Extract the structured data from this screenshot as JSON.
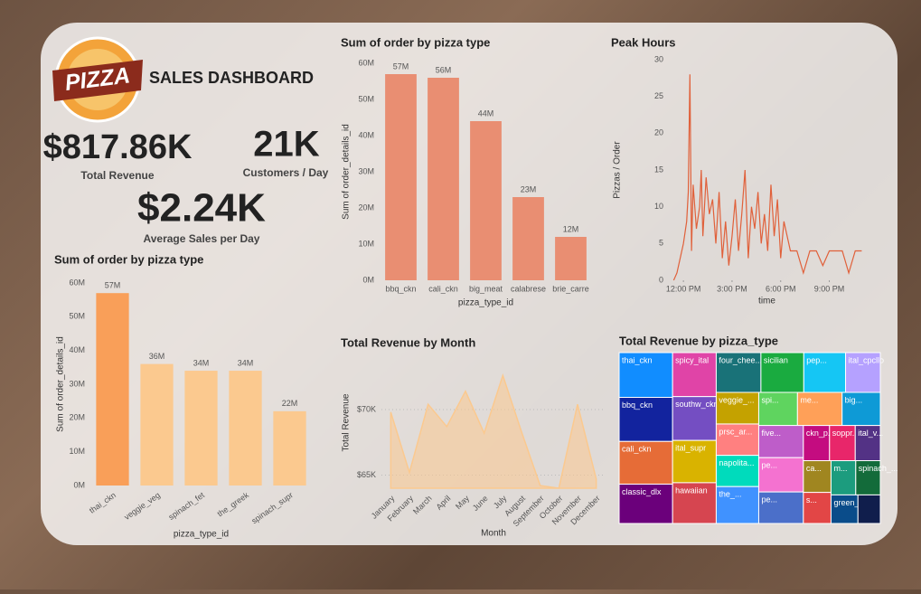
{
  "header": {
    "title": "SALES DASHBOARD",
    "logo": "PIZZA"
  },
  "kpis": [
    {
      "value": "$817.86K",
      "label": "Total Revenue"
    },
    {
      "value": "21K",
      "label": "Customers / Day"
    },
    {
      "value": "$2.24K",
      "label": "Average Sales per Day"
    }
  ],
  "chart_data": [
    {
      "type": "bar",
      "title": "Sum of order by pizza type",
      "x_label": "pizza_type_id",
      "y_label": "Sum of order_details_id",
      "categories": [
        "bbq_ckn",
        "cali_ckn",
        "big_meat",
        "calabrese",
        "brie_carre"
      ],
      "values": [
        57000000,
        56000000,
        44000000,
        23000000,
        12000000
      ],
      "value_labels": [
        "57M",
        "56M",
        "44M",
        "23M",
        "12M"
      ],
      "color": "#e98e72",
      "ylim": [
        0,
        60000000
      ],
      "yticks": [
        {
          "value": 0,
          "label": "0M"
        },
        {
          "value": 10000000,
          "label": "10M"
        },
        {
          "value": 20000000,
          "label": "20M"
        },
        {
          "value": 30000000,
          "label": "30M"
        },
        {
          "value": 40000000,
          "label": "40M"
        },
        {
          "value": 50000000,
          "label": "50M"
        },
        {
          "value": 60000000,
          "label": "60M"
        }
      ]
    },
    {
      "type": "line",
      "title": "Peak Hours",
      "x_label": "time",
      "y_label": "Pizzas / Order",
      "color": "#e0603a",
      "x": [
        11.4,
        11.6,
        11.8,
        12.0,
        12.2,
        12.3,
        12.4,
        12.5,
        12.6,
        12.8,
        13.0,
        13.1,
        13.2,
        13.4,
        13.6,
        13.8,
        14.0,
        14.2,
        14.4,
        14.6,
        14.8,
        15.0,
        15.2,
        15.4,
        15.6,
        15.8,
        16.0,
        16.2,
        16.4,
        16.6,
        16.8,
        17.0,
        17.2,
        17.4,
        17.6,
        17.8,
        18.0,
        18.2,
        18.6,
        19.0,
        19.4,
        19.8,
        20.2,
        20.6,
        21.0,
        21.4,
        21.8,
        22.2,
        22.6,
        23.0
      ],
      "values": [
        0,
        1,
        3,
        5,
        8,
        12,
        28,
        4,
        13,
        7,
        10,
        15,
        6,
        14,
        9,
        11,
        5,
        12,
        3,
        8,
        2,
        6,
        11,
        4,
        9,
        15,
        3,
        10,
        7,
        12,
        5,
        9,
        4,
        13,
        6,
        11,
        3,
        8,
        4,
        4,
        1,
        4,
        4,
        2,
        4,
        4,
        4,
        1,
        4,
        4
      ],
      "xlim": [
        11.1,
        23.2
      ],
      "xticks": [
        {
          "value": 12,
          "label": "12:00 PM"
        },
        {
          "value": 15,
          "label": "3:00 PM"
        },
        {
          "value": 18,
          "label": "6:00 PM"
        },
        {
          "value": 21,
          "label": "9:00 PM"
        }
      ],
      "ylim": [
        0,
        30
      ],
      "yticks": [
        0,
        5,
        10,
        15,
        20,
        25,
        30
      ]
    },
    {
      "type": "bar",
      "title": "Sum of order by pizza type",
      "x_label": "pizza_type_id",
      "y_label": "Sum of order_details_id",
      "categories": [
        "thai_ckn",
        "veggie_veg",
        "spinach_fet",
        "the_greek",
        "spinach_supr"
      ],
      "values": [
        57000000,
        36000000,
        34000000,
        34000000,
        22000000
      ],
      "value_labels": [
        "57M",
        "36M",
        "34M",
        "34M",
        "22M"
      ],
      "colors": [
        "#f99f59",
        "#fbc98f",
        "#fbc98f",
        "#fbc98f",
        "#fbc98f"
      ],
      "rotate_labels": true,
      "ylim": [
        0,
        60000000
      ],
      "yticks": [
        {
          "value": 0,
          "label": "0M"
        },
        {
          "value": 10000000,
          "label": "10M"
        },
        {
          "value": 20000000,
          "label": "20M"
        },
        {
          "value": 30000000,
          "label": "30M"
        },
        {
          "value": 40000000,
          "label": "40M"
        },
        {
          "value": 50000000,
          "label": "50M"
        },
        {
          "value": 60000000,
          "label": "60M"
        }
      ]
    },
    {
      "type": "area",
      "title": "Total Revenue by Month",
      "x_label": "Month",
      "y_label": "Total Revenue",
      "color": "#fbc98f",
      "grid": true,
      "categories": [
        "January",
        "February",
        "March",
        "April",
        "May",
        "June",
        "July",
        "August",
        "September",
        "October",
        "November",
        "December"
      ],
      "values": [
        69800,
        65200,
        70400,
        68700,
        71400,
        68200,
        72600,
        68300,
        64200,
        64000,
        70400,
        64700
      ],
      "ylim": [
        64000,
        74000
      ],
      "yticks": [
        {
          "value": 65000,
          "label": "$65K"
        },
        {
          "value": 70000,
          "label": "$70K"
        }
      ]
    },
    {
      "type": "treemap",
      "title": "Total Revenue by pizza_type",
      "categories": [
        "thai_ckn",
        "bbq_ckn",
        "cali_ckn",
        "classic_dlx",
        "spicy_ital",
        "southw_ckn",
        "ital_supr",
        "hawaiian",
        "four_chee...",
        "sicilian",
        "pep...",
        "ital_cpcllo",
        "veggie_...",
        "prsc_ar...",
        "napolita...",
        "the_...",
        "spi...",
        "me...",
        "big...",
        "five...",
        "pe...",
        "pe...",
        "ckn_p...",
        "soppr...",
        "ital_v...",
        "ca...",
        "s...",
        "m...",
        "spinach_...",
        "green_g...",
        null
      ],
      "values": [
        43434,
        42768,
        41410,
        38180,
        34831,
        34706,
        33477,
        32273,
        32265,
        30940,
        30162,
        25094,
        24375,
        24194,
        24087,
        28454,
        23271,
        26781,
        22968,
        26066,
        27776,
        25529,
        16702,
        16425,
        16019,
        15934,
        15596,
        15360,
        15277,
        13955,
        11588
      ],
      "colors": [
        "#118dff",
        "#12239e",
        "#e66c37",
        "#6b007b",
        "#e044a7",
        "#744ec2",
        "#d9b300",
        "#d64550",
        "#197278",
        "#1aab40",
        "#15c6f4",
        "#b5a1ff",
        "#c4a200",
        "#ff8080",
        "#00dbbc",
        "#4092ff",
        "#5fd45f",
        "#ffa058",
        "#0e9ad6",
        "#be5dc9",
        "#f472d0",
        "#4b6fc9",
        "#c40c80",
        "#e8266a",
        "#533285",
        "#a08620",
        "#e24646",
        "#1c9c7e",
        "#136b3a",
        "#0a4c8a",
        "#101e4c"
      ]
    }
  ]
}
